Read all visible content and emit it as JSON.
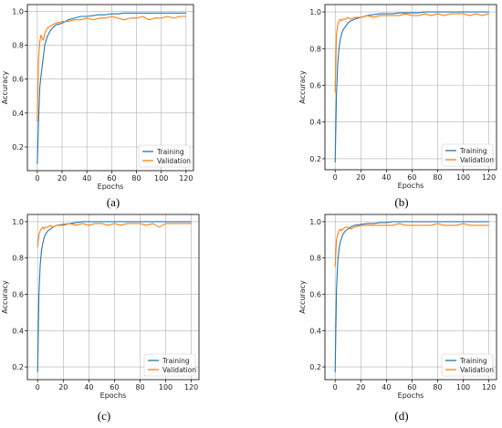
{
  "colors": {
    "training": "#1f77b4",
    "validation": "#ff7f0e",
    "grid": "#b0b0b0"
  },
  "chart_data": [
    {
      "type": "line",
      "caption": "(a)",
      "xlabel": "Epochs",
      "ylabel": "Accuracy",
      "xlim": [
        -8,
        126
      ],
      "ylim": [
        0.06,
        1.04
      ],
      "xticks": [
        "0",
        "20",
        "40",
        "60",
        "80",
        "100",
        "120"
      ],
      "yticks": [
        "0.2",
        "0.4",
        "0.6",
        "0.8",
        "1.0"
      ],
      "grid": true,
      "legend": "bottom-right",
      "series": [
        {
          "name": "Training",
          "x": [
            0,
            1,
            2,
            3,
            4,
            5,
            6,
            8,
            10,
            12,
            15,
            20,
            25,
            30,
            35,
            40,
            45,
            50,
            55,
            60,
            65,
            70,
            75,
            80,
            85,
            90,
            95,
            100,
            105,
            110,
            115,
            120
          ],
          "values": [
            0.1,
            0.35,
            0.55,
            0.62,
            0.68,
            0.74,
            0.8,
            0.85,
            0.88,
            0.9,
            0.92,
            0.93,
            0.95,
            0.96,
            0.97,
            0.97,
            0.975,
            0.98,
            0.98,
            0.985,
            0.985,
            0.99,
            0.99,
            0.99,
            0.99,
            0.99,
            0.99,
            0.99,
            0.99,
            0.99,
            0.99,
            0.99
          ]
        },
        {
          "name": "Validation",
          "x": [
            0,
            1,
            2,
            3,
            4,
            5,
            6,
            8,
            10,
            12,
            15,
            20,
            25,
            30,
            35,
            40,
            45,
            50,
            55,
            60,
            65,
            70,
            75,
            80,
            85,
            90,
            95,
            100,
            105,
            110,
            115,
            120
          ],
          "values": [
            0.35,
            0.72,
            0.82,
            0.86,
            0.84,
            0.83,
            0.87,
            0.9,
            0.91,
            0.92,
            0.93,
            0.94,
            0.94,
            0.95,
            0.95,
            0.96,
            0.95,
            0.96,
            0.96,
            0.97,
            0.96,
            0.95,
            0.96,
            0.96,
            0.97,
            0.95,
            0.96,
            0.96,
            0.97,
            0.96,
            0.97,
            0.97
          ]
        }
      ]
    },
    {
      "type": "line",
      "caption": "(b)",
      "xlabel": "Epochs",
      "ylabel": "Accuracy",
      "xlim": [
        -8,
        126
      ],
      "ylim": [
        0.14,
        1.04
      ],
      "xticks": [
        "0",
        "20",
        "40",
        "60",
        "80",
        "100",
        "120"
      ],
      "yticks": [
        "0.2",
        "0.4",
        "0.6",
        "0.8",
        "1.0"
      ],
      "grid": true,
      "legend": "bottom-right",
      "series": [
        {
          "name": "Training",
          "x": [
            0,
            1,
            2,
            3,
            4,
            5,
            6,
            8,
            10,
            12,
            15,
            20,
            25,
            30,
            35,
            40,
            45,
            50,
            55,
            60,
            65,
            70,
            75,
            80,
            85,
            90,
            95,
            100,
            105,
            110,
            115,
            120
          ],
          "values": [
            0.18,
            0.55,
            0.72,
            0.8,
            0.85,
            0.88,
            0.9,
            0.92,
            0.94,
            0.95,
            0.96,
            0.97,
            0.98,
            0.985,
            0.99,
            0.99,
            0.99,
            0.995,
            0.995,
            0.995,
            0.995,
            1.0,
            1.0,
            1.0,
            1.0,
            1.0,
            1.0,
            1.0,
            1.0,
            1.0,
            1.0,
            1.0
          ]
        },
        {
          "name": "Validation",
          "x": [
            0,
            1,
            2,
            3,
            4,
            5,
            6,
            8,
            10,
            12,
            15,
            20,
            25,
            30,
            35,
            40,
            45,
            50,
            55,
            60,
            65,
            70,
            75,
            80,
            85,
            90,
            95,
            100,
            105,
            110,
            115,
            120
          ],
          "values": [
            0.56,
            0.88,
            0.93,
            0.95,
            0.96,
            0.95,
            0.96,
            0.96,
            0.97,
            0.96,
            0.97,
            0.97,
            0.98,
            0.97,
            0.98,
            0.98,
            0.98,
            0.98,
            0.99,
            0.98,
            0.98,
            0.99,
            0.98,
            0.99,
            0.98,
            0.99,
            0.99,
            0.99,
            0.98,
            0.99,
            0.98,
            0.99
          ]
        }
      ]
    },
    {
      "type": "line",
      "caption": "(c)",
      "xlabel": "Epochs",
      "ylabel": "Accuracy",
      "xlim": [
        -8,
        126
      ],
      "ylim": [
        0.13,
        1.04
      ],
      "xticks": [
        "0",
        "20",
        "40",
        "60",
        "80",
        "100",
        "120"
      ],
      "yticks": [
        "0.2",
        "0.4",
        "0.6",
        "0.8",
        "1.0"
      ],
      "grid": true,
      "legend": "bottom-right",
      "series": [
        {
          "name": "Training",
          "x": [
            0,
            1,
            2,
            3,
            4,
            5,
            6,
            8,
            10,
            12,
            15,
            20,
            25,
            30,
            35,
            40,
            45,
            50,
            55,
            60,
            65,
            70,
            75,
            80,
            85,
            90,
            95,
            100,
            105,
            110,
            115,
            120
          ],
          "values": [
            0.17,
            0.6,
            0.76,
            0.84,
            0.88,
            0.91,
            0.93,
            0.95,
            0.96,
            0.97,
            0.98,
            0.985,
            0.99,
            0.995,
            1.0,
            1.0,
            1.0,
            1.0,
            1.0,
            1.0,
            1.0,
            1.0,
            1.0,
            1.0,
            1.0,
            1.0,
            1.0,
            1.0,
            1.0,
            1.0,
            1.0,
            1.0
          ]
        },
        {
          "name": "Validation",
          "x": [
            0,
            1,
            2,
            3,
            4,
            5,
            6,
            8,
            10,
            12,
            15,
            20,
            25,
            30,
            35,
            40,
            45,
            50,
            55,
            60,
            65,
            70,
            75,
            80,
            85,
            90,
            95,
            100,
            105,
            110,
            115,
            120
          ],
          "values": [
            0.86,
            0.93,
            0.95,
            0.96,
            0.97,
            0.96,
            0.97,
            0.97,
            0.98,
            0.97,
            0.98,
            0.98,
            0.99,
            0.98,
            0.99,
            0.98,
            0.99,
            0.99,
            0.98,
            0.99,
            0.98,
            0.99,
            0.99,
            0.99,
            0.98,
            0.99,
            0.97,
            0.99,
            0.99,
            0.99,
            0.99,
            0.99
          ]
        }
      ]
    },
    {
      "type": "line",
      "caption": "(d)",
      "xlabel": "Epochs",
      "ylabel": "Accuracy",
      "xlim": [
        -8,
        126
      ],
      "ylim": [
        0.13,
        1.04
      ],
      "xticks": [
        "0",
        "20",
        "40",
        "60",
        "80",
        "100",
        "120"
      ],
      "yticks": [
        "0.2",
        "0.4",
        "0.6",
        "0.8",
        "1.0"
      ],
      "grid": true,
      "legend": "bottom-right",
      "series": [
        {
          "name": "Training",
          "x": [
            0,
            1,
            2,
            3,
            4,
            5,
            6,
            8,
            10,
            12,
            15,
            20,
            25,
            30,
            35,
            40,
            45,
            50,
            55,
            60,
            65,
            70,
            75,
            80,
            85,
            90,
            95,
            100,
            105,
            110,
            115,
            120
          ],
          "values": [
            0.17,
            0.62,
            0.78,
            0.85,
            0.89,
            0.91,
            0.93,
            0.95,
            0.96,
            0.97,
            0.98,
            0.985,
            0.99,
            0.99,
            0.995,
            0.995,
            1.0,
            1.0,
            1.0,
            1.0,
            1.0,
            1.0,
            1.0,
            1.0,
            1.0,
            1.0,
            1.0,
            1.0,
            1.0,
            1.0,
            1.0,
            1.0
          ]
        },
        {
          "name": "Validation",
          "x": [
            0,
            1,
            2,
            3,
            4,
            5,
            6,
            8,
            10,
            12,
            15,
            20,
            25,
            30,
            35,
            40,
            45,
            50,
            55,
            60,
            65,
            70,
            75,
            80,
            85,
            90,
            95,
            100,
            105,
            110,
            115,
            120
          ],
          "values": [
            0.75,
            0.9,
            0.93,
            0.95,
            0.96,
            0.95,
            0.96,
            0.97,
            0.97,
            0.96,
            0.97,
            0.98,
            0.98,
            0.98,
            0.98,
            0.98,
            0.98,
            0.99,
            0.98,
            0.98,
            0.98,
            0.98,
            0.98,
            0.99,
            0.98,
            0.98,
            0.98,
            0.99,
            0.98,
            0.98,
            0.98,
            0.98
          ]
        }
      ]
    }
  ]
}
